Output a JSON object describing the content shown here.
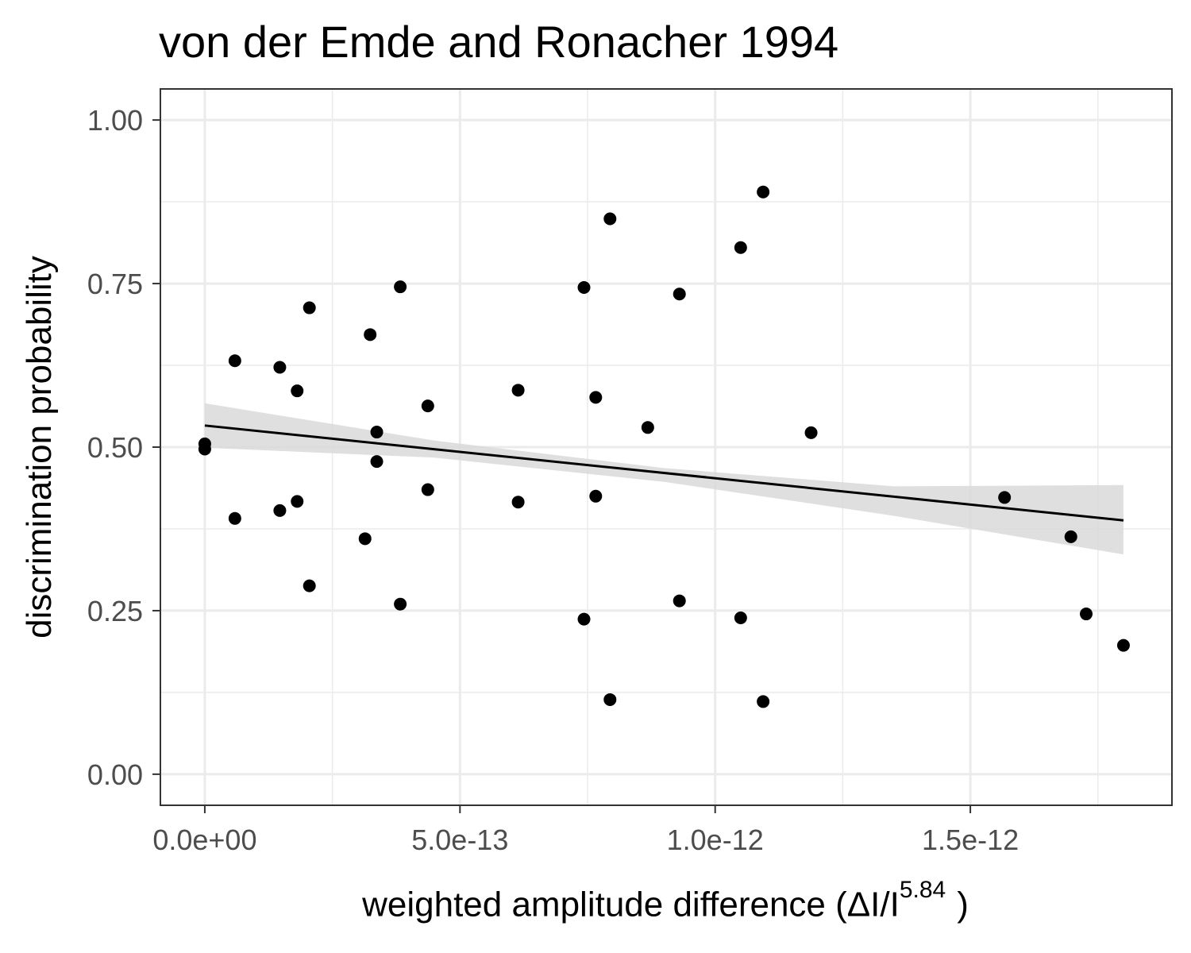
{
  "chart_data": {
    "type": "scatter",
    "title": "von der Emde and Ronacher 1994",
    "ylabel": "discrimination probability",
    "xlabel": {
      "main": "weighted  amplitude  difference (ΔI/I",
      "superscript": "5.84",
      "close": ")"
    },
    "xlim": [
      -8.7e-14,
      1.895e-12
    ],
    "ylim": [
      -0.0475,
      1.0475
    ],
    "x_ticks": [
      0,
      5e-13,
      1e-12,
      1.5e-12
    ],
    "x_tick_labels": [
      "0.0e+00",
      "5.0e-13",
      "1.0e-12",
      "1.5e-12"
    ],
    "x_minor_ticks": [
      2.5e-13,
      7.5e-13,
      1.25e-12,
      1.75e-12
    ],
    "y_ticks": [
      0,
      0.25,
      0.5,
      0.75,
      1.0
    ],
    "y_tick_labels": [
      "0.00",
      "0.25",
      "0.50",
      "0.75",
      "1.00"
    ],
    "y_minor_ticks": [
      0.125,
      0.375,
      0.625,
      0.875
    ],
    "grid": true,
    "points": [
      {
        "x": 0.0,
        "y": 0.505
      },
      {
        "x": 0.0,
        "y": 0.497
      },
      {
        "x": 5.9e-14,
        "y": 0.632
      },
      {
        "x": 5.9e-14,
        "y": 0.391
      },
      {
        "x": 1.47e-13,
        "y": 0.622
      },
      {
        "x": 1.47e-13,
        "y": 0.403
      },
      {
        "x": 1.81e-13,
        "y": 0.586
      },
      {
        "x": 1.81e-13,
        "y": 0.417
      },
      {
        "x": 2.05e-13,
        "y": 0.713
      },
      {
        "x": 2.05e-13,
        "y": 0.288
      },
      {
        "x": 3.14e-13,
        "y": 0.36
      },
      {
        "x": 3.24e-13,
        "y": 0.672
      },
      {
        "x": 3.37e-13,
        "y": 0.523
      },
      {
        "x": 3.37e-13,
        "y": 0.478
      },
      {
        "x": 3.83e-13,
        "y": 0.745
      },
      {
        "x": 3.83e-13,
        "y": 0.26
      },
      {
        "x": 4.37e-13,
        "y": 0.563
      },
      {
        "x": 4.37e-13,
        "y": 0.435
      },
      {
        "x": 6.14e-13,
        "y": 0.587
      },
      {
        "x": 6.14e-13,
        "y": 0.416
      },
      {
        "x": 7.43e-13,
        "y": 0.744
      },
      {
        "x": 7.43e-13,
        "y": 0.237
      },
      {
        "x": 7.66e-13,
        "y": 0.576
      },
      {
        "x": 7.66e-13,
        "y": 0.425
      },
      {
        "x": 7.94e-13,
        "y": 0.849
      },
      {
        "x": 7.94e-13,
        "y": 0.114
      },
      {
        "x": 8.68e-13,
        "y": 0.53
      },
      {
        "x": 9.3e-13,
        "y": 0.734
      },
      {
        "x": 9.3e-13,
        "y": 0.265
      },
      {
        "x": 1.05e-12,
        "y": 0.805
      },
      {
        "x": 1.05e-12,
        "y": 0.239
      },
      {
        "x": 1.094e-12,
        "y": 0.89
      },
      {
        "x": 1.094e-12,
        "y": 0.111
      },
      {
        "x": 1.188e-12,
        "y": 0.522
      },
      {
        "x": 1.567e-12,
        "y": 0.423
      },
      {
        "x": 1.697e-12,
        "y": 0.363
      },
      {
        "x": 1.727e-12,
        "y": 0.245
      },
      {
        "x": 1.8e-12,
        "y": 0.197
      }
    ],
    "fit_line": {
      "x": [
        0.0,
        1.8e-12
      ],
      "y": [
        0.533,
        0.388
      ]
    },
    "confidence_band": {
      "x": [
        0.0,
        4.5e-13,
        9e-13,
        1.35e-12,
        1.8e-12
      ],
      "lower": [
        0.499,
        0.484,
        0.447,
        0.395,
        0.336
      ],
      "upper": [
        0.567,
        0.51,
        0.468,
        0.44,
        0.442
      ]
    },
    "colors": {
      "points": "#000000",
      "line": "#000000",
      "band": "#d9d9d9",
      "grid": "#ebebeb",
      "panel_border": "#333333",
      "tick_label": "#4d4d4d"
    }
  }
}
